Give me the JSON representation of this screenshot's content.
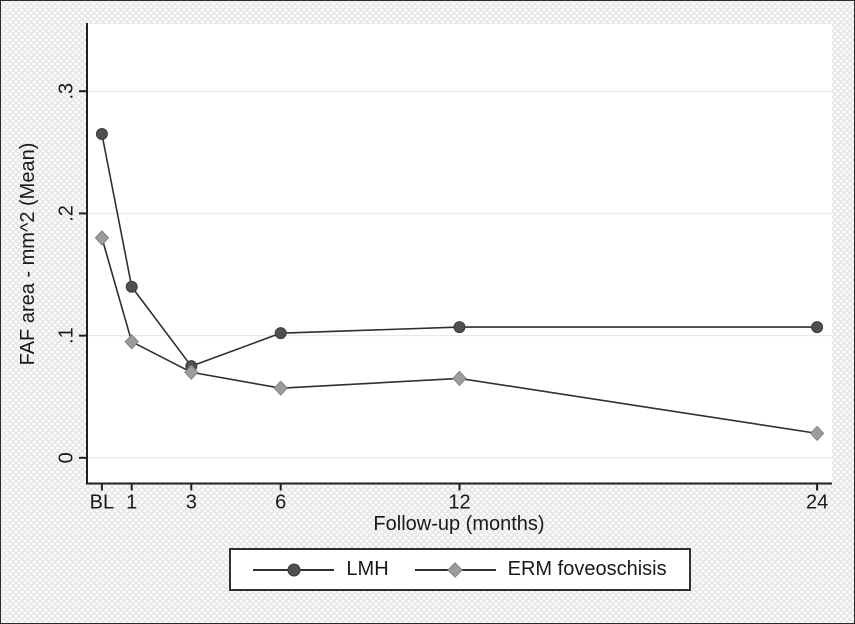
{
  "figure": {
    "outer_background": "#e8e8e8",
    "background_pattern": "halftone-dots",
    "border_color": "#2a2a2a"
  },
  "chart_data": {
    "type": "line",
    "title": "",
    "xlabel": "Follow-up (months)",
    "ylabel": "FAF area - mm^2 (Mean)",
    "x": [
      0,
      1,
      3,
      6,
      12,
      24
    ],
    "x_tick_labels": [
      "BL",
      "1",
      "3",
      "6",
      "12",
      "24"
    ],
    "y_ticks": [
      0,
      0.1,
      0.2,
      0.3
    ],
    "y_tick_labels": [
      "0",
      ".1",
      ".2",
      ".3"
    ],
    "xlim": [
      -0.5,
      24.5
    ],
    "ylim": [
      -0.021,
      0.355
    ],
    "grid": "horizontal",
    "legend_position": "bottom",
    "series": [
      {
        "name": "LMH",
        "marker": "circle",
        "color": "#4f4f4f",
        "edge_color": "#3c3c3c",
        "values": [
          0.265,
          0.14,
          0.075,
          0.102,
          0.107,
          0.107
        ]
      },
      {
        "name": "ERM foveoschisis",
        "marker": "diamond",
        "color": "#9c9c9c",
        "edge_color": "#848484",
        "values": [
          0.18,
          0.095,
          0.07,
          0.057,
          0.065,
          0.02
        ]
      }
    ],
    "line_color": "#2f2f2f",
    "axis_color": "#1f1f1f",
    "grid_color": "#e5e5e5",
    "text_color": "#191919",
    "plot_background": "#ffffff"
  }
}
